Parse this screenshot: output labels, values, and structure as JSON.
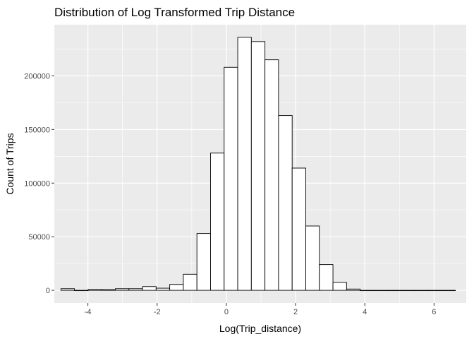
{
  "chart_data": {
    "type": "bar",
    "title": "Distribution of Log Transformed Trip Distance",
    "xlabel": "Log(Trip_distance)",
    "ylabel": "Count of Trips",
    "xlim": [
      -4.97,
      6.93
    ],
    "ylim": [
      -11800,
      247700
    ],
    "x_ticks": [
      -4,
      -2,
      0,
      2,
      4,
      6
    ],
    "x_tick_labels": [
      "-4",
      "-2",
      "0",
      "2",
      "4",
      "6"
    ],
    "y_ticks": [
      0,
      50000,
      100000,
      150000,
      200000
    ],
    "y_tick_labels": [
      "0",
      "50000",
      "100000",
      "150000",
      "200000"
    ],
    "bin_width": 0.393,
    "bins_start": [
      -4.78,
      -4.387,
      -3.994,
      -3.601,
      -3.208,
      -2.815,
      -2.422,
      -2.029,
      -1.636,
      -1.243,
      -0.85,
      -0.457,
      -0.064,
      0.329,
      0.722,
      1.115,
      1.508,
      1.901,
      2.294,
      2.687,
      3.08,
      3.473,
      3.866,
      4.259,
      4.652,
      5.045,
      5.438,
      5.831,
      6.224
    ],
    "values": [
      1500,
      0,
      800,
      600,
      1500,
      1500,
      3500,
      2000,
      5500,
      15000,
      53000,
      128000,
      208000,
      236000,
      232000,
      215000,
      163000,
      114000,
      60000,
      24000,
      7500,
      1200,
      0,
      0,
      0,
      0,
      0,
      0,
      0
    ],
    "bar_fill": "#ffffff",
    "bar_stroke": "#000000",
    "panel_background": "#ebebeb",
    "grid_color": "#ffffff",
    "grid": true,
    "legend": "none"
  }
}
